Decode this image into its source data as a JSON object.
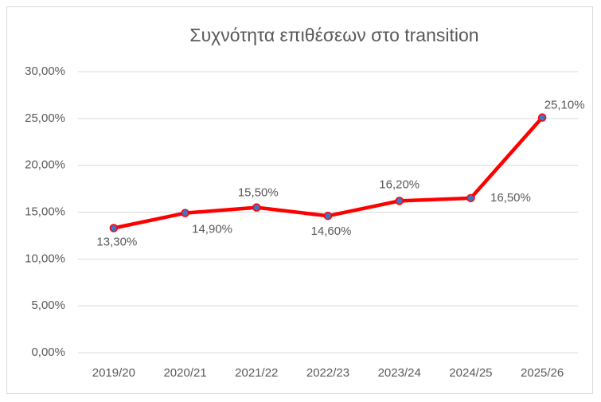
{
  "chart_data": {
    "type": "line",
    "title": "Συχνότητα επιθέσεων στο transition",
    "categories": [
      "2019/20",
      "2020/21",
      "2021/22",
      "2022/23",
      "2023/24",
      "2024/25",
      "2025/26"
    ],
    "series": [
      {
        "color": "#ff0000",
        "marker_color": "#4472c4",
        "values": [
          13.3,
          14.9,
          15.5,
          14.6,
          16.2,
          16.5,
          25.1
        ],
        "value_labels": [
          "13,30%",
          "14,90%",
          "15,50%",
          "14,60%",
          "16,20%",
          "16,50%",
          "25,10%"
        ]
      }
    ],
    "ylim": [
      0,
      30
    ],
    "yticks": [
      {
        "value": 0,
        "label": "0,00%"
      },
      {
        "value": 5,
        "label": "5,00%"
      },
      {
        "value": 10,
        "label": "10,00%"
      },
      {
        "value": 15,
        "label": "15,00%"
      },
      {
        "value": 20,
        "label": "20,00%"
      },
      {
        "value": 25,
        "label": "25,00%"
      },
      {
        "value": 30,
        "label": "30,00%"
      }
    ],
    "grid": true
  }
}
